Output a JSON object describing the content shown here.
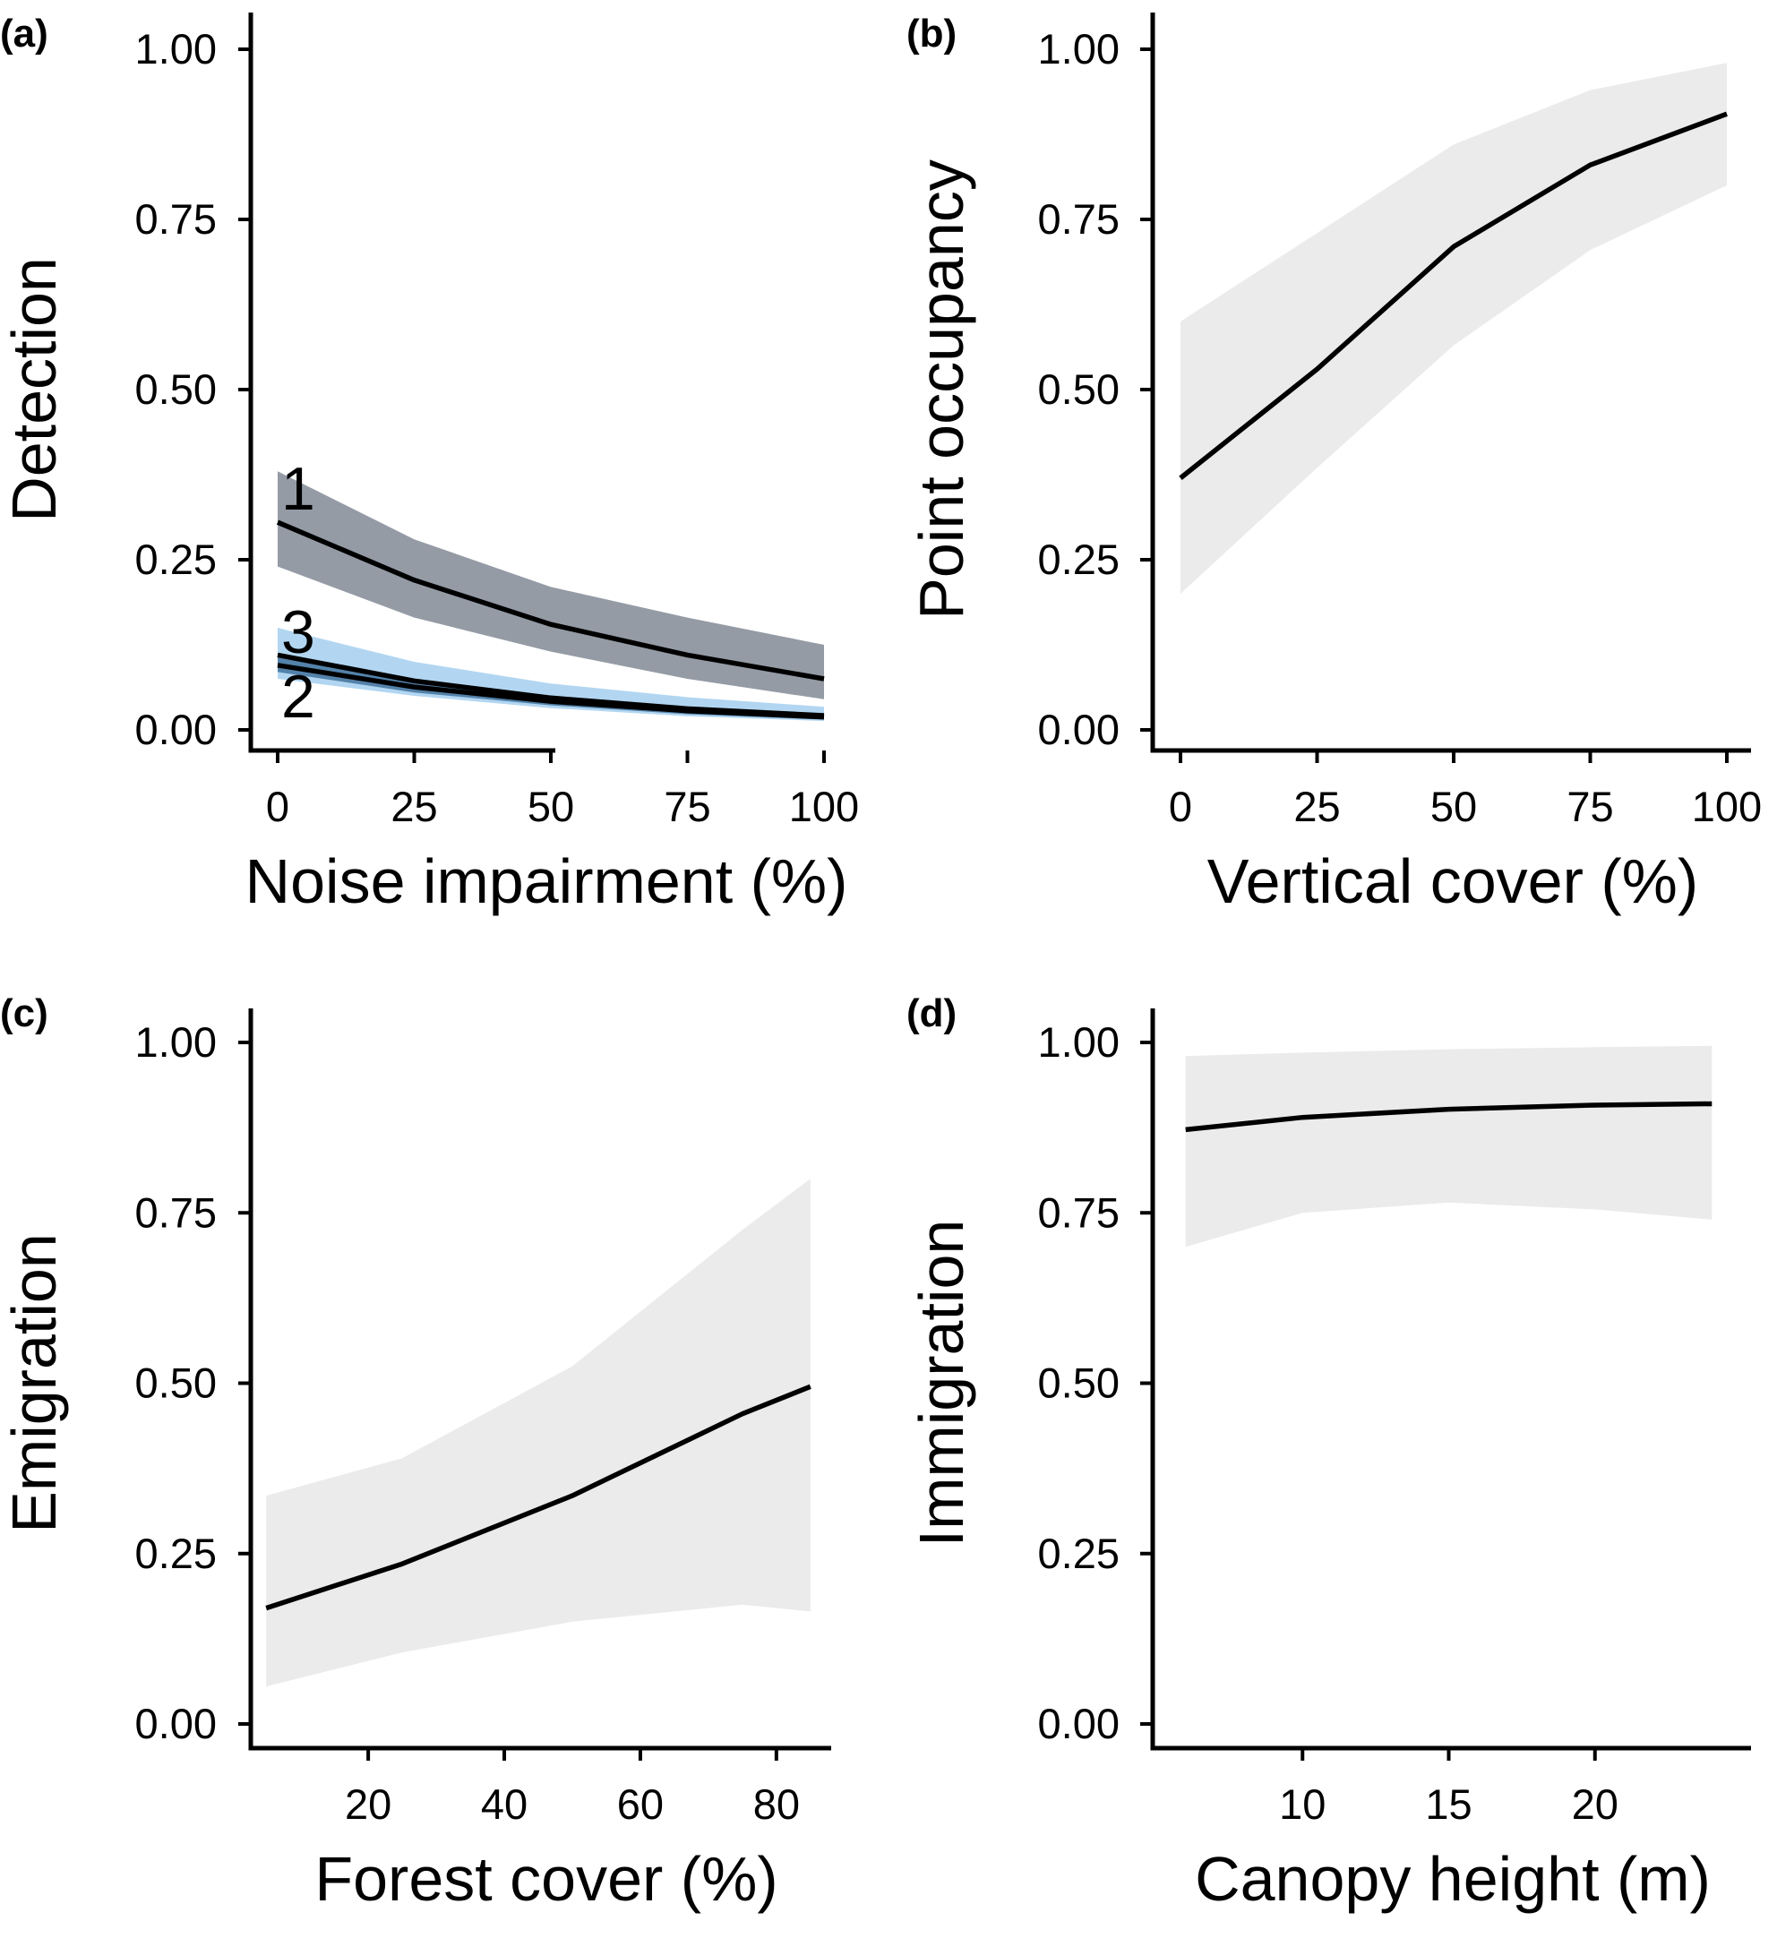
{
  "chart_data": [
    {
      "panel": "(a)",
      "type": "line",
      "xlabel": "Noise impairment (%)",
      "ylabel": "Detection",
      "xlim": [
        0,
        100
      ],
      "ylim": [
        0,
        1
      ],
      "xticks": [
        0,
        25,
        50,
        75,
        100
      ],
      "yticks": [
        "0.00",
        "0.25",
        "0.50",
        "0.75",
        "1.00"
      ],
      "series": [
        {
          "name": "1",
          "color": "#000000",
          "band_color": "#5b6575",
          "band_opacity": 0.65,
          "x": [
            0,
            25,
            50,
            75,
            100
          ],
          "y": [
            0.305,
            0.22,
            0.155,
            0.11,
            0.075
          ],
          "lower": [
            0.24,
            0.165,
            0.115,
            0.075,
            0.045
          ],
          "upper": [
            0.38,
            0.28,
            0.21,
            0.165,
            0.125
          ]
        },
        {
          "name": "3",
          "color": "#000000",
          "band_color": "#7fbbe8",
          "band_opacity": 0.6,
          "x": [
            0,
            25,
            50,
            75,
            100
          ],
          "y": [
            0.11,
            0.072,
            0.047,
            0.031,
            0.021
          ],
          "lower": [
            0.075,
            0.05,
            0.032,
            0.02,
            0.013
          ],
          "upper": [
            0.15,
            0.1,
            0.068,
            0.048,
            0.034
          ]
        },
        {
          "name": "2",
          "color": "#000000",
          "band_color": "#2b5e8c",
          "band_opacity": 0.7,
          "x": [
            0,
            25,
            50,
            75,
            100
          ],
          "y": [
            0.095,
            0.063,
            0.042,
            0.028,
            0.019
          ],
          "lower": [
            0.085,
            0.055,
            0.036,
            0.023,
            0.015
          ],
          "upper": [
            0.106,
            0.071,
            0.048,
            0.033,
            0.023
          ]
        }
      ]
    },
    {
      "panel": "(b)",
      "type": "line",
      "xlabel": "Vertical cover (%)",
      "ylabel": "Point occupancy",
      "xlim": [
        0,
        100
      ],
      "ylim": [
        0,
        1
      ],
      "xticks": [
        0,
        25,
        50,
        75,
        100
      ],
      "yticks": [
        "0.00",
        "0.25",
        "0.50",
        "0.75",
        "1.00"
      ],
      "series": [
        {
          "name": "",
          "color": "#000000",
          "band_color": "#ebebeb",
          "band_opacity": 1,
          "x": [
            0,
            25,
            50,
            75,
            100
          ],
          "y": [
            0.37,
            0.53,
            0.71,
            0.83,
            0.905
          ],
          "lower": [
            0.2,
            0.385,
            0.565,
            0.705,
            0.8
          ],
          "upper": [
            0.6,
            0.73,
            0.86,
            0.94,
            0.98
          ]
        }
      ]
    },
    {
      "panel": "(c)",
      "type": "line",
      "xlabel": "Forest cover (%)",
      "ylabel": "Emigration",
      "xlim": [
        3,
        87
      ],
      "ylim": [
        0,
        1
      ],
      "xticks": [
        20,
        40,
        60,
        80
      ],
      "yticks": [
        "0.00",
        "0.25",
        "0.50",
        "0.75",
        "1.00"
      ],
      "series": [
        {
          "name": "",
          "color": "#000000",
          "band_color": "#ebebeb",
          "band_opacity": 1,
          "x": [
            5,
            25,
            50,
            75,
            85
          ],
          "y": [
            0.17,
            0.235,
            0.335,
            0.455,
            0.495
          ],
          "lower": [
            0.055,
            0.105,
            0.15,
            0.175,
            0.165
          ],
          "upper": [
            0.335,
            0.39,
            0.525,
            0.725,
            0.8
          ]
        }
      ]
    },
    {
      "panel": "(d)",
      "type": "line",
      "xlabel": "Canopy height (m)",
      "ylabel": "Immigration",
      "xlim": [
        5,
        25
      ],
      "ylim": [
        0,
        1
      ],
      "xticks": [
        10,
        15,
        20
      ],
      "yticks": [
        "0.00",
        "0.25",
        "0.50",
        "0.75",
        "1.00"
      ],
      "series": [
        {
          "name": "",
          "color": "#000000",
          "band_color": "#ebebeb",
          "band_opacity": 1,
          "x": [
            6,
            10,
            15,
            20,
            24
          ],
          "y": [
            0.872,
            0.89,
            0.902,
            0.908,
            0.91
          ],
          "lower": [
            0.7,
            0.75,
            0.765,
            0.755,
            0.74
          ],
          "upper": [
            0.98,
            0.985,
            0.99,
            0.993,
            0.995
          ]
        }
      ]
    }
  ]
}
